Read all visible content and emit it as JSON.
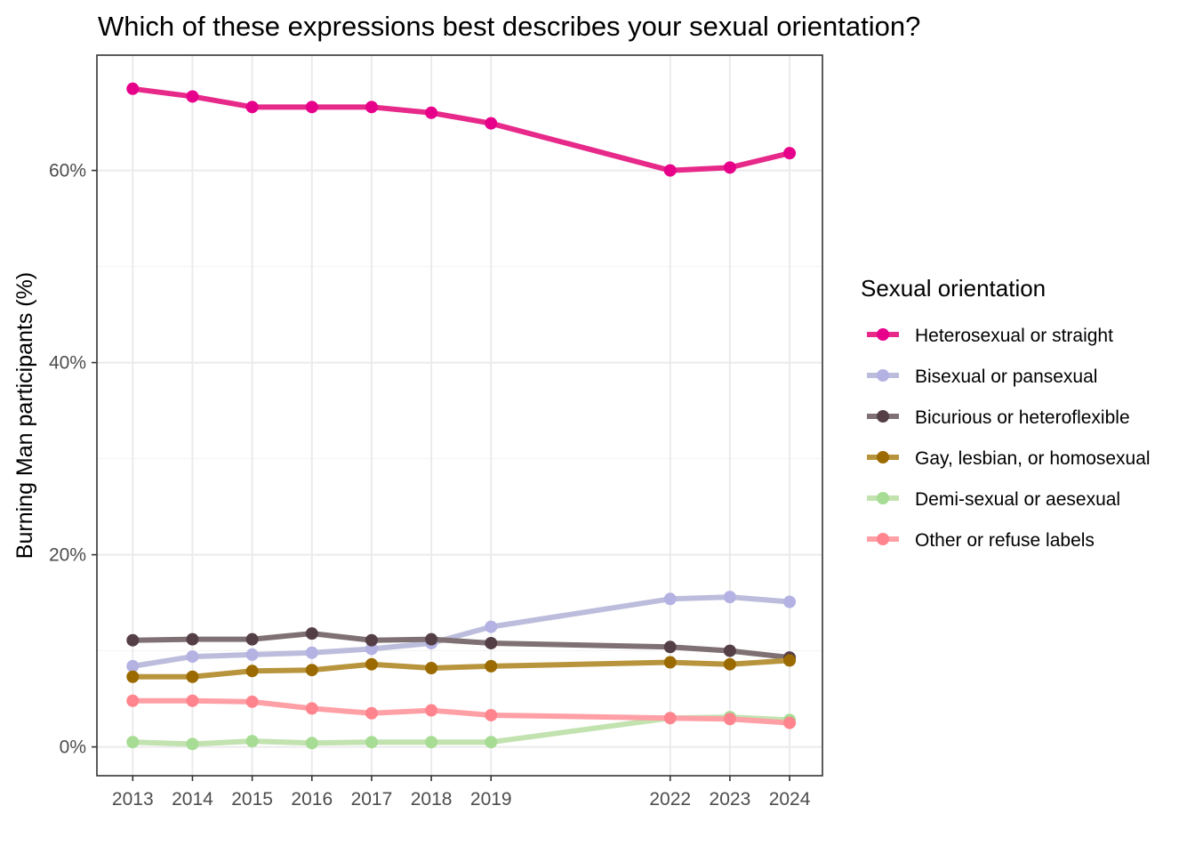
{
  "chart_data": {
    "type": "line",
    "title": "Which of these expressions best describes your sexual orientation?",
    "xlabel": "",
    "ylabel": "Burning Man participants (%)",
    "x": [
      2013,
      2014,
      2015,
      2016,
      2017,
      2018,
      2019,
      2022,
      2023,
      2024
    ],
    "x_tick_labels": [
      "2013",
      "2014",
      "2015",
      "2016",
      "2017",
      "2018",
      "2019",
      "2022",
      "2023",
      "2024"
    ],
    "y_ticks": [
      0,
      20,
      40,
      60
    ],
    "y_tick_labels": [
      "0%",
      "20%",
      "40%",
      "60%"
    ],
    "xlim": [
      2012.4,
      2024.55
    ],
    "ylim": [
      -3,
      72
    ],
    "grid": true,
    "legend": {
      "title": "Sexual orientation",
      "position": "right"
    },
    "series": [
      {
        "name": "Heterosexual or straight",
        "color": "#E7298A",
        "point_color": "#E7008A",
        "values": [
          68.5,
          67.7,
          66.6,
          66.6,
          66.6,
          66.0,
          64.9,
          60.0,
          60.3,
          61.8
        ]
      },
      {
        "name": "Bisexual or pansexual",
        "color": "#BCBDDC",
        "point_color": "#B3B2E3",
        "values": [
          8.4,
          9.4,
          9.6,
          9.8,
          10.2,
          10.8,
          12.5,
          15.4,
          15.6,
          15.1
        ]
      },
      {
        "name": "Bicurious or heteroflexible",
        "color": "#7F7173",
        "point_color": "#553F47",
        "values": [
          11.1,
          11.2,
          11.2,
          11.8,
          11.1,
          11.2,
          10.8,
          10.4,
          10.0,
          9.3
        ]
      },
      {
        "name": "Gay, lesbian, or homosexual",
        "color": "#B8943C",
        "point_color": "#9B6A00",
        "values": [
          7.3,
          7.3,
          7.9,
          8.0,
          8.6,
          8.2,
          8.4,
          8.8,
          8.6,
          9.0
        ]
      },
      {
        "name": "Demi-sexual or aesexual",
        "color": "#C2E2B0",
        "point_color": "#A6DC93",
        "values": [
          0.5,
          0.3,
          0.6,
          0.4,
          0.5,
          0.5,
          0.5,
          3.0,
          3.1,
          2.8
        ]
      },
      {
        "name": "Other or refuse labels",
        "color": "#FFA0A6",
        "point_color": "#FF848E",
        "values": [
          4.8,
          4.8,
          4.7,
          4.0,
          3.5,
          3.8,
          3.3,
          3.0,
          2.9,
          2.5
        ]
      }
    ]
  }
}
